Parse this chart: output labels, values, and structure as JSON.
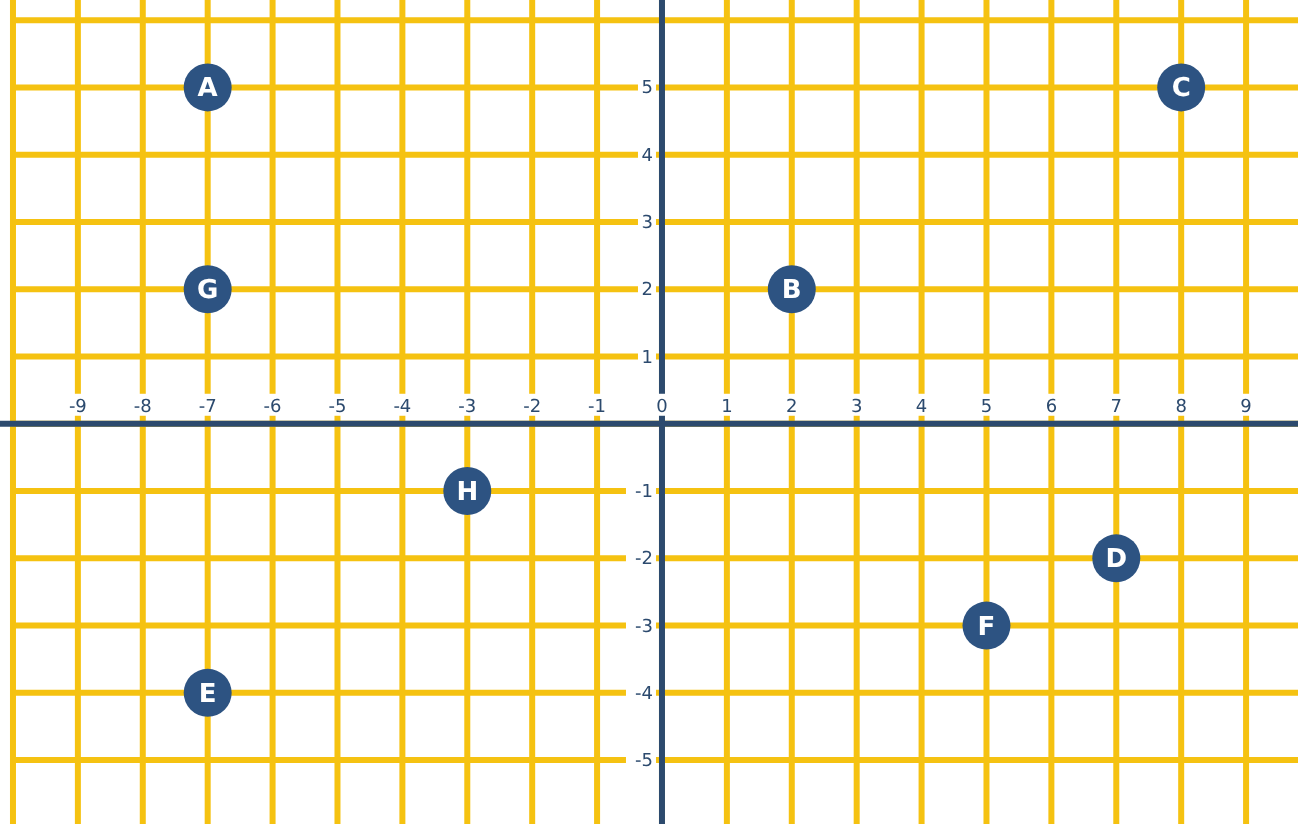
{
  "chart_data": {
    "type": "scatter",
    "x": [
      -7,
      8,
      -7,
      2,
      -3,
      7,
      5,
      -7
    ],
    "series": [
      {
        "color": "#2d5382",
        "values": [
          5,
          5,
          2,
          2,
          -1,
          -2,
          -3,
          -4
        ]
      }
    ],
    "annotations": [
      {
        "text": "A",
        "x": -7,
        "y": 5
      },
      {
        "text": "C",
        "x": 8,
        "y": 5
      },
      {
        "text": "G",
        "x": -7,
        "y": 2
      },
      {
        "text": "B",
        "x": 2,
        "y": 2
      },
      {
        "text": "H",
        "x": -3,
        "y": -1
      },
      {
        "text": "D",
        "x": 7,
        "y": -2
      },
      {
        "text": "F",
        "x": 5,
        "y": -3
      },
      {
        "text": "E",
        "x": -7,
        "y": -4
      }
    ],
    "marker": "circle",
    "grid": true,
    "xlim": [
      -10.2,
      9.8
    ],
    "ylim": [
      -5.95,
      6.3
    ],
    "xticks": [
      {
        "value": -10,
        "label": null
      },
      {
        "value": -9,
        "label": "-9"
      },
      {
        "value": -8,
        "label": "-8"
      },
      {
        "value": -7,
        "label": "-7"
      },
      {
        "value": -6,
        "label": "-6"
      },
      {
        "value": -5,
        "label": "-5"
      },
      {
        "value": -4,
        "label": "-4"
      },
      {
        "value": -3,
        "label": "-3"
      },
      {
        "value": -2,
        "label": "-2"
      },
      {
        "value": -1,
        "label": "-1"
      },
      0,
      1,
      2,
      3,
      4,
      5,
      6,
      7,
      8,
      9
    ],
    "yticks": [
      {
        "value": -5,
        "label": "-5"
      },
      {
        "value": -4,
        "label": "-4"
      },
      {
        "value": -3,
        "label": "-3"
      },
      {
        "value": -2,
        "label": "-2"
      },
      {
        "value": -1,
        "label": "-1"
      },
      {
        "value": 0,
        "label": null
      },
      1,
      2,
      3,
      4,
      5,
      {
        "value": 6,
        "label": null
      }
    ]
  }
}
